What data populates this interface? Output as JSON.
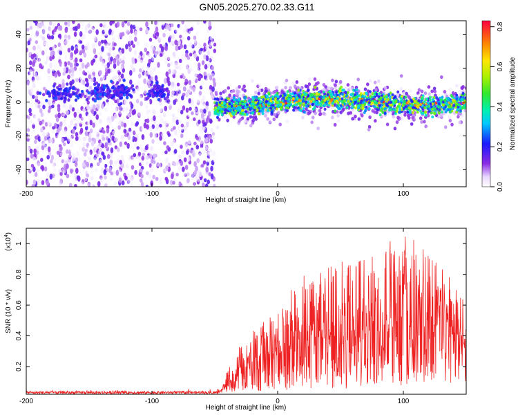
{
  "title": "GN05.2025.270.02.33.G11",
  "colors": {
    "snr_line": "#ee2222",
    "axis": "#000000",
    "background": "#ffffff"
  },
  "chart_data": [
    {
      "type": "heatmap",
      "xlabel": "Height of straight line (km)",
      "ylabel": "Frequency (Hz)",
      "xlim": [
        -200,
        150
      ],
      "ylim": [
        -50,
        48
      ],
      "xticks": [
        -200,
        -100,
        0,
        100
      ],
      "xtick_labels": [
        "-200",
        "-100",
        "0",
        "100"
      ],
      "yticks": [
        -40,
        -20,
        0,
        20,
        40
      ],
      "ytick_labels": [
        "-40",
        "-20",
        "0",
        "20",
        "40"
      ],
      "colorbar": {
        "label": "Normalized spectral amplitude",
        "range": [
          0,
          0.83
        ],
        "ticks": [
          0.0,
          0.2,
          0.4,
          0.6,
          0.8
        ],
        "tick_labels": [
          "0.0",
          "0.2",
          "0.4",
          "0.6",
          "0.8"
        ],
        "colormap": "rainbow (white-violet-blue-cyan-green-yellow-red)"
      },
      "regions": [
        {
          "x_range": [
            -200,
            -50
          ],
          "description": "scattered low-amplitude noise (0.0-0.1) over full frequency range, weak band near 5 Hz around x=-170, -140, -95"
        },
        {
          "x_range": [
            -50,
            150
          ],
          "description": "concentrated band centered near 0-3 Hz, width about +/-8 Hz, amplitudes 0.2-0.8"
        }
      ]
    },
    {
      "type": "line",
      "xlabel": "Height of straight line (km)",
      "ylabel": "SNR (10 * v/v)",
      "y_multiplier_label": "(x10",
      "y_multiplier_exp": "4",
      "xlim": [
        -200,
        150
      ],
      "ylim": [
        0.02,
        1.1
      ],
      "xticks": [
        -200,
        -100,
        0,
        100
      ],
      "xtick_labels": [
        "-200",
        "-100",
        "0",
        "100"
      ],
      "yticks": [
        0.2,
        0.4,
        0.6,
        0.8,
        1.0
      ],
      "ytick_labels": [
        "0.2",
        "0.4",
        "0.6",
        "0.8",
        "1"
      ],
      "series": [
        {
          "color": "#ee2222",
          "envelope": {
            "x": [
              -200,
              -150,
              -100,
              -60,
              -45,
              -42,
              -35,
              -30,
              -20,
              -10,
              0,
              10,
              20,
              40,
              60,
              80,
              100,
              120,
              140,
              150
            ],
            "mean": [
              0.03,
              0.03,
              0.03,
              0.03,
              0.03,
              0.06,
              0.12,
              0.18,
              0.22,
              0.26,
              0.3,
              0.34,
              0.38,
              0.4,
              0.42,
              0.42,
              0.43,
              0.42,
              0.41,
              0.4
            ],
            "peak": [
              0.05,
              0.05,
              0.05,
              0.05,
              0.05,
              0.14,
              0.26,
              0.34,
              0.45,
              0.5,
              0.55,
              0.72,
              0.8,
              0.85,
              0.92,
              1.0,
              1.1,
              0.95,
              0.75,
              0.7
            ]
          }
        }
      ]
    }
  ]
}
